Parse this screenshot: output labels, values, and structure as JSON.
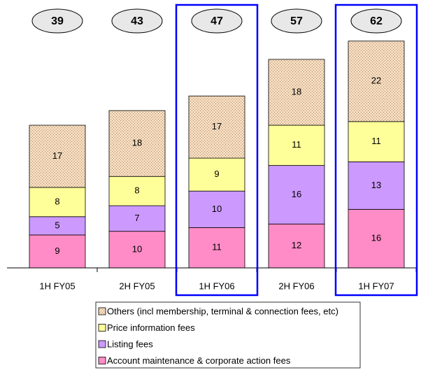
{
  "chart_data": {
    "type": "stacked_bar",
    "categories": [
      "1H FY05",
      "2H FY05",
      "1H FY06",
      "2H FY06",
      "1H FY07"
    ],
    "series": [
      {
        "name": "Account maintenance & corporate action fees",
        "color": "#ff8cc6",
        "values": [
          9,
          10,
          11,
          12,
          16
        ]
      },
      {
        "name": "Listing fees",
        "color": "#cc99ff",
        "values": [
          5,
          7,
          10,
          16,
          13
        ]
      },
      {
        "name": "Price information fees",
        "color": "#ffff99",
        "values": [
          8,
          8,
          9,
          11,
          11
        ]
      },
      {
        "name": "Others (incl membership, terminal & connection fees, etc)",
        "color": "#f5dcc0",
        "values": [
          17,
          18,
          17,
          18,
          22
        ],
        "pattern": "dots"
      }
    ],
    "totals": [
      39,
      43,
      47,
      57,
      62
    ],
    "highlighted": [
      2,
      4
    ],
    "highlight_color": "#0000ff"
  }
}
